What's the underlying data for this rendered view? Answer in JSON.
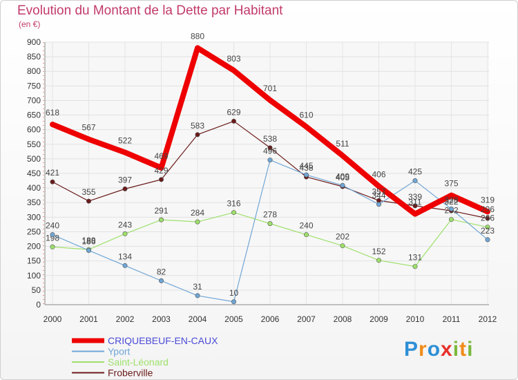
{
  "title": "Evolution du Montant de la Dette par Habitant",
  "subtitle": "(en €)",
  "brand": {
    "text": "Proxiti",
    "letters": [
      "P",
      "r",
      "o",
      "x",
      "i",
      "t",
      "i"
    ],
    "colors": [
      "#2e8fd6",
      "#f08c1a",
      "#2e8fd6",
      "#e8302a",
      "#7ab83c",
      "#f08c1a",
      "#7ab83c"
    ]
  },
  "chart_data": {
    "type": "line",
    "x": [
      "2000",
      "2001",
      "2002",
      "2003",
      "2004",
      "2005",
      "2006",
      "2007",
      "2008",
      "2009",
      "2010",
      "2011",
      "2012"
    ],
    "ylim": [
      0,
      900
    ],
    "yticks": [
      "0",
      "50",
      "100",
      "150",
      "200",
      "250",
      "300",
      "350",
      "400",
      "450",
      "500",
      "550",
      "600",
      "650",
      "700",
      "750",
      "800",
      "850",
      "900"
    ],
    "grid": true,
    "legend_position": "bottom-left",
    "series": [
      {
        "name": "Froberville",
        "color": "#6b1a1a",
        "width": 1.2,
        "values": [
          421,
          355,
          397,
          429,
          583,
          629,
          538,
          438,
          405,
          357,
          339,
          322,
          296
        ],
        "labels": [
          "421",
          "355",
          "397",
          "429",
          "583",
          "629",
          "538",
          "438",
          "405",
          "357",
          "339",
          "322",
          "296"
        ]
      },
      {
        "name": "Saint-Léonard",
        "color": "#9ee06b",
        "width": 1.2,
        "values": [
          198,
          189,
          243,
          291,
          284,
          316,
          278,
          240,
          202,
          152,
          131,
          292,
          266
        ],
        "labels": [
          "198",
          "189",
          "243",
          "291",
          "284",
          "316",
          "278",
          "240",
          "202",
          "152",
          "131",
          "292",
          "266"
        ]
      },
      {
        "name": "Yport",
        "color": "#6fa6d6",
        "width": 1.2,
        "values": [
          240,
          186,
          134,
          82,
          31,
          10,
          496,
          445,
          409,
          344,
          425,
          328,
          223
        ],
        "labels": [
          "240",
          "186",
          "134",
          "82",
          "31",
          "10",
          "496",
          "445",
          "409",
          "344",
          "425",
          "328",
          "223"
        ]
      },
      {
        "name": "CRIQUEBEUF-EN-CAUX",
        "color": "#ee0000",
        "width": 8,
        "values": [
          618,
          567,
          522,
          469,
          880,
          803,
          701,
          610,
          511,
          406,
          311,
          375,
          319
        ],
        "labels": [
          "618",
          "567",
          "522",
          "469",
          "880",
          "803",
          "701",
          "610",
          "511",
          "406",
          "311",
          "375",
          "319"
        ]
      }
    ]
  }
}
